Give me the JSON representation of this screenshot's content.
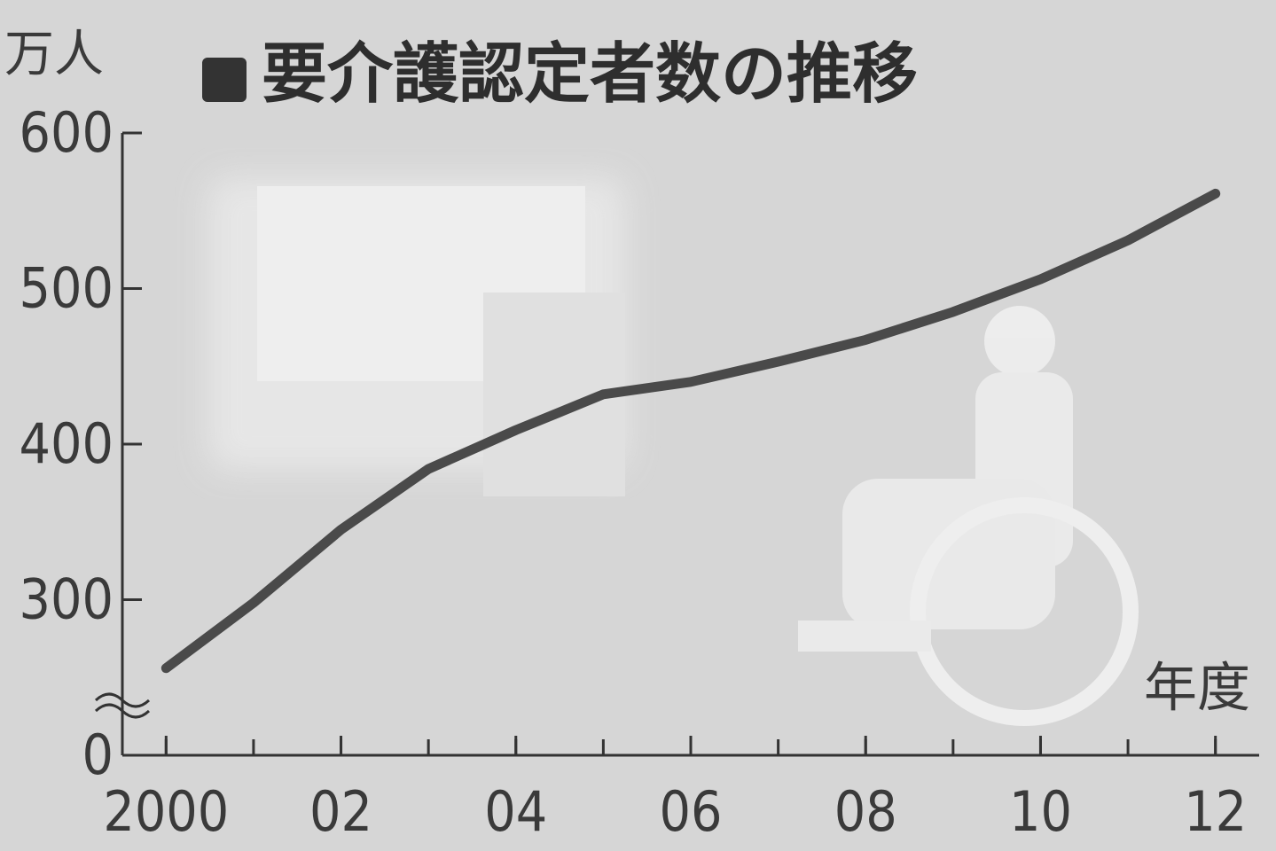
{
  "chart_data": {
    "type": "line",
    "title": "要介護認定者数の推移",
    "y_label": "万人",
    "x_label": "年度",
    "x": [
      2000,
      2001,
      2002,
      2003,
      2004,
      2005,
      2006,
      2007,
      2008,
      2009,
      2010,
      2011,
      2012
    ],
    "series": [
      {
        "color": "#4a4a4a",
        "values": [
          256,
          298,
          345,
          384,
          409,
          432,
          440,
          453,
          467,
          485,
          506,
          531,
          561
        ]
      }
    ],
    "xlim": [
      1999.5,
      2012.5
    ],
    "xticks": [
      {
        "value": 2000,
        "label": "2000"
      },
      {
        "value": 2002,
        "label": "02"
      },
      {
        "value": 2004,
        "label": "04"
      },
      {
        "value": 2006,
        "label": "06"
      },
      {
        "value": 2008,
        "label": "08"
      },
      {
        "value": 2010,
        "label": "10"
      },
      {
        "value": 2012,
        "label": "12"
      }
    ],
    "ylim": [
      0,
      600
    ],
    "yticks": [
      0,
      300,
      400,
      500,
      600
    ],
    "y_break": true,
    "grid": false
  }
}
